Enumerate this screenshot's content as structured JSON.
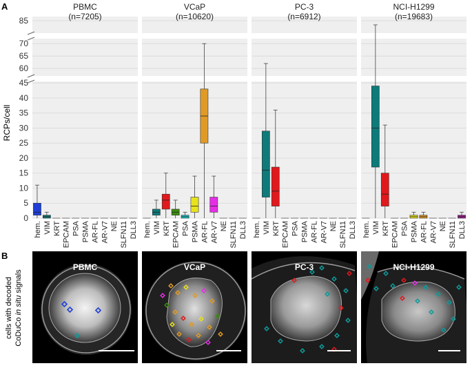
{
  "panel_a_label": "A",
  "panel_b_label": "B",
  "y_axis_label": "RCPs/cell",
  "panel_b_ylabel_line1": "cells with decoded",
  "panel_b_ylabel_line2_pre": "CoDuCo ",
  "panel_b_ylabel_line2_em": "in situ",
  "panel_b_ylabel_line2_post": " signals",
  "cell_images": [
    {
      "label": "PBMC"
    },
    {
      "label": "VCaP"
    },
    {
      "label": "PC-3"
    },
    {
      "label": "NCI-H1299"
    }
  ],
  "chart_data": {
    "type": "box",
    "title": "",
    "ylabel": "RCPs/cell",
    "y_ticks_lower": [
      0,
      5,
      10,
      15,
      20,
      25,
      30,
      35,
      40,
      45
    ],
    "y_ticks_mid": [
      60,
      65,
      70
    ],
    "y_ticks_top": [
      85
    ],
    "y_axis_breaks": [
      [
        45,
        57
      ],
      [
        72,
        82
      ]
    ],
    "ylim": [
      0,
      86
    ],
    "categories": [
      "hem.",
      "VIM",
      "KRT",
      "EPCAM",
      "PSA",
      "PSMA",
      "AR-FL",
      "AR-V7",
      "NE",
      "SLFN11",
      "DLL3"
    ],
    "colors": {
      "hem.": "#1f3fd6",
      "VIM": "#0e7a7a",
      "KRT": "#e0191c",
      "EPCAM": "#3e8a12",
      "PSA": "#18c4c4",
      "PSMA": "#e8e21a",
      "AR-FL": "#e09a25",
      "AR-V7": "#e62ee6",
      "NE": "#888888",
      "SLFN11": "#888888",
      "DLL3": "#9c1b8f"
    },
    "panels": [
      {
        "name": "PBMC",
        "n": "(n=7205)",
        "boxes": {
          "hem.": {
            "wlo": 0,
            "q1": 1,
            "med": 2,
            "q3": 5,
            "whi": 11
          },
          "VIM": {
            "wlo": 0,
            "q1": 0,
            "med": 0.5,
            "q3": 1,
            "whi": 2
          }
        }
      },
      {
        "name": "VCaP",
        "n": "(n=10620)",
        "boxes": {
          "VIM": {
            "wlo": 0,
            "q1": 1,
            "med": 2,
            "q3": 3,
            "whi": 6
          },
          "KRT": {
            "wlo": 0,
            "q1": 3,
            "med": 6,
            "q3": 8,
            "whi": 15
          },
          "EPCAM": {
            "wlo": 0,
            "q1": 1,
            "med": 2,
            "q3": 3,
            "whi": 6
          },
          "PSA": {
            "wlo": 0,
            "q1": 0,
            "med": 0.5,
            "q3": 1,
            "whi": 2
          },
          "PSMA": {
            "wlo": 0,
            "q1": 2,
            "med": 4,
            "q3": 7,
            "whi": 14
          },
          "AR-FL": {
            "wlo": 0,
            "q1": 25,
            "med": 34,
            "q3": 43,
            "whi": 70
          },
          "AR-V7": {
            "wlo": 0,
            "q1": 2,
            "med": 4,
            "q3": 7,
            "whi": 14
          }
        }
      },
      {
        "name": "PC-3",
        "n": "(n=6912)",
        "boxes": {
          "VIM": {
            "wlo": 0,
            "q1": 7,
            "med": 16,
            "q3": 29,
            "whi": 62
          },
          "KRT": {
            "wlo": 0,
            "q1": 4,
            "med": 9,
            "q3": 17,
            "whi": 36
          }
        }
      },
      {
        "name": "NCI-H1299",
        "n": "(n=19683)",
        "boxes": {
          "VIM": {
            "wlo": 0,
            "q1": 17,
            "med": 30,
            "q3": 44,
            "whi": 84
          },
          "KRT": {
            "wlo": 0,
            "q1": 4,
            "med": 8,
            "q3": 15,
            "whi": 31
          },
          "PSMA": {
            "wlo": 0,
            "q1": 0,
            "med": 0.5,
            "q3": 1,
            "whi": 2
          },
          "AR-FL": {
            "wlo": 0,
            "q1": 0,
            "med": 0.5,
            "q3": 1,
            "whi": 2
          },
          "DLL3": {
            "wlo": 0,
            "q1": 0,
            "med": 0.5,
            "q3": 1,
            "whi": 2
          }
        }
      }
    ]
  }
}
